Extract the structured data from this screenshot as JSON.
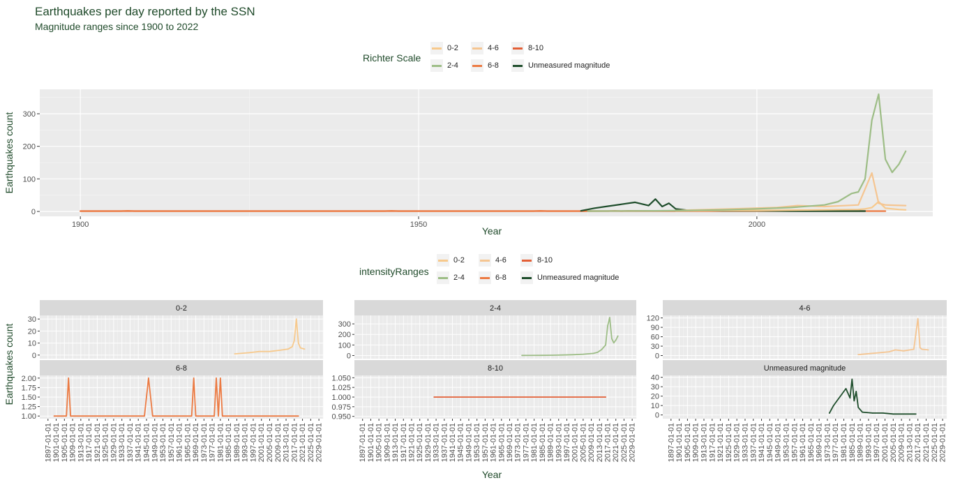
{
  "title": "Earthquakes per day reported by the SSN",
  "subtitle": "Magnitude ranges since 1900 to 2022",
  "legend_top": {
    "title": "Richter Scale",
    "items": [
      {
        "label": "0-2",
        "color": "#f7c98c"
      },
      {
        "label": "2-4",
        "color": "#9dbd86"
      },
      {
        "label": "4-6",
        "color": "#f5c591"
      },
      {
        "label": "6-8",
        "color": "#ec7a42"
      },
      {
        "label": "8-10",
        "color": "#e35f36"
      },
      {
        "label": "Unmeasured magnitude",
        "color": "#1e4d2b"
      }
    ]
  },
  "legend_bottom": {
    "title": "intensityRanges",
    "items": [
      {
        "label": "0-2",
        "color": "#f7c98c"
      },
      {
        "label": "2-4",
        "color": "#9dbd86"
      },
      {
        "label": "4-6",
        "color": "#f5c591"
      },
      {
        "label": "6-8",
        "color": "#ec7a42"
      },
      {
        "label": "8-10",
        "color": "#e35f36"
      },
      {
        "label": "Unmeasured magnitude",
        "color": "#1e4d2b"
      }
    ]
  },
  "chart_data": [
    {
      "type": "line",
      "xlabel": "Year",
      "ylabel": "Earthquakes count",
      "xlim": [
        1894,
        2026
      ],
      "ylim": [
        -15,
        375
      ],
      "xticks": [
        1900,
        1950,
        2000
      ],
      "yticks": [
        0,
        100,
        200,
        300
      ],
      "grid": true,
      "legend_position": "top",
      "series": [
        {
          "name": "8-10",
          "color": "#e35f36",
          "x": [
            1900,
            1932,
            2016
          ],
          "y": [
            1,
            1,
            1
          ]
        },
        {
          "name": "6-8",
          "color": "#ec7a42",
          "x": [
            1900,
            1906,
            1907,
            1908,
            1945,
            1946,
            1947,
            1967,
            1968,
            1969,
            1978,
            1979,
            1980,
            1981,
            2019
          ],
          "y": [
            1,
            1,
            2,
            1,
            1,
            2,
            1,
            1,
            2,
            1,
            1,
            2,
            1,
            2,
            1
          ]
        },
        {
          "name": "Unmeasured magnitude",
          "color": "#1e4d2b",
          "x": [
            1974,
            1976,
            1978,
            1980,
            1982,
            1984,
            1985,
            1986,
            1987,
            1988,
            1990,
            1995,
            2000,
            2005,
            2010,
            2016
          ],
          "y": [
            2,
            10,
            16,
            22,
            28,
            18,
            38,
            15,
            25,
            8,
            3,
            2,
            2,
            1,
            1,
            1
          ]
        },
        {
          "name": "0-2",
          "color": "#f7c98c",
          "x": [
            1988,
            1995,
            2000,
            2005,
            2010,
            2015,
            2016,
            2017,
            2018,
            2019,
            2020,
            2021,
            2022
          ],
          "y": [
            2,
            3,
            3,
            4,
            5,
            6,
            8,
            12,
            30,
            10,
            8,
            6,
            5
          ]
        },
        {
          "name": "4-6",
          "color": "#f5c591",
          "x": [
            1988,
            1993,
            1998,
            2003,
            2006,
            2010,
            2015,
            2017,
            2018,
            2019,
            2022
          ],
          "y": [
            3,
            6,
            9,
            12,
            18,
            15,
            20,
            118,
            25,
            20,
            18
          ]
        },
        {
          "name": "2-4",
          "color": "#9dbd86",
          "x": [
            1975,
            1985,
            1990,
            1995,
            2000,
            2005,
            2010,
            2012,
            2014,
            2015,
            2016,
            2017,
            2018,
            2019,
            2020,
            2021,
            2022
          ],
          "y": [
            1,
            2,
            3,
            5,
            8,
            12,
            20,
            30,
            55,
            60,
            100,
            280,
            360,
            160,
            120,
            145,
            185
          ]
        }
      ]
    },
    {
      "type": "line",
      "xlabel": "Year",
      "ylabel": "Earthquakes count",
      "facets": [
        {
          "label": "0-2",
          "color": "#f7c98c",
          "ylim": [
            -3,
            33
          ],
          "yticks": [
            0,
            10,
            20,
            30
          ],
          "ytick_labels": [
            "0",
            "10",
            "20",
            "30"
          ],
          "x": [
            1988,
            1995,
            2000,
            2005,
            2010,
            2014,
            2016,
            2017,
            2018,
            2019,
            2020,
            2022
          ],
          "y": [
            1,
            2,
            3,
            3,
            4,
            5,
            7,
            12,
            30,
            10,
            6,
            5
          ]
        },
        {
          "label": "2-4",
          "color": "#9dbd86",
          "ylim": [
            -30,
            380
          ],
          "yticks": [
            0,
            100,
            200,
            300
          ],
          "ytick_labels": [
            "0",
            "100",
            "200",
            "300"
          ],
          "x": [
            1975,
            1985,
            1990,
            1995,
            2000,
            2005,
            2010,
            2012,
            2014,
            2016,
            2017,
            2018,
            2019,
            2020,
            2021,
            2022
          ],
          "y": [
            1,
            2,
            3,
            5,
            8,
            12,
            20,
            30,
            55,
            100,
            280,
            360,
            160,
            120,
            145,
            185
          ]
        },
        {
          "label": "4-6",
          "color": "#f5c591",
          "ylim": [
            -10,
            128
          ],
          "yticks": [
            0,
            30,
            60,
            90,
            120
          ],
          "ytick_labels": [
            "0",
            "30",
            "60",
            "90",
            "120"
          ],
          "x": [
            1988,
            1993,
            1998,
            2003,
            2006,
            2010,
            2015,
            2017,
            2018,
            2019,
            2022
          ],
          "y": [
            3,
            6,
            9,
            12,
            18,
            15,
            20,
            118,
            25,
            20,
            18
          ]
        },
        {
          "label": "6-8",
          "color": "#ec7a42",
          "ylim": [
            0.93,
            2.07
          ],
          "yticks": [
            1.0,
            1.25,
            1.5,
            1.75,
            2.0
          ],
          "ytick_labels": [
            "1.00",
            "1.25",
            "1.50",
            "1.75",
            "2.00"
          ],
          "x": [
            1900,
            1906,
            1907,
            1908,
            1944,
            1946,
            1948,
            1967,
            1968,
            1969,
            1978,
            1979,
            1980,
            1981,
            1982,
            2019
          ],
          "y": [
            1,
            1,
            2,
            1,
            1,
            2,
            1,
            1,
            2,
            1,
            1,
            2,
            1,
            2,
            1,
            1
          ]
        },
        {
          "label": "8-10",
          "color": "#e35f36",
          "ylim": [
            0.944,
            1.056
          ],
          "yticks": [
            0.95,
            0.975,
            1.0,
            1.025,
            1.05
          ],
          "ytick_labels": [
            "0.950",
            "0.975",
            "1.000",
            "1.025",
            "1.050"
          ],
          "x": [
            1932,
            2016
          ],
          "y": [
            1,
            1
          ]
        },
        {
          "label": "Unmeasured magnitude",
          "color": "#1e4d2b",
          "ylim": [
            -4,
            42
          ],
          "yticks": [
            0,
            10,
            20,
            30,
            40
          ],
          "ytick_labels": [
            "0",
            "10",
            "20",
            "30",
            "40"
          ],
          "x": [
            1974,
            1976,
            1978,
            1980,
            1982,
            1984,
            1985,
            1986,
            1987,
            1988,
            1990,
            1995,
            2000,
            2005,
            2010,
            2016
          ],
          "y": [
            2,
            10,
            16,
            22,
            28,
            18,
            38,
            15,
            25,
            8,
            3,
            2,
            2,
            1,
            1,
            1
          ]
        }
      ],
      "xlim": [
        1893,
        2031
      ],
      "xtick_labels": [
        "1897-01-01",
        "1901-01-01",
        "1905-01-01",
        "1909-01-01",
        "1913-01-01",
        "1917-01-01",
        "1921-01-01",
        "1925-01-01",
        "1929-01-01",
        "1933-01-01",
        "1937-01-01",
        "1941-01-01",
        "1945-01-01",
        "1949-01-01",
        "1953-01-01",
        "1957-01-01",
        "1961-01-01",
        "1965-01-01",
        "1969-01-01",
        "1973-01-01",
        "1977-01-01",
        "1981-01-01",
        "1985-01-01",
        "1989-01-01",
        "1993-01-01",
        "1997-01-01",
        "2001-01-01",
        "2005-01-01",
        "2009-01-01",
        "2013-01-01",
        "2017-01-01",
        "2021-01-01",
        "2025-01-01",
        "2029-01-01"
      ]
    }
  ]
}
